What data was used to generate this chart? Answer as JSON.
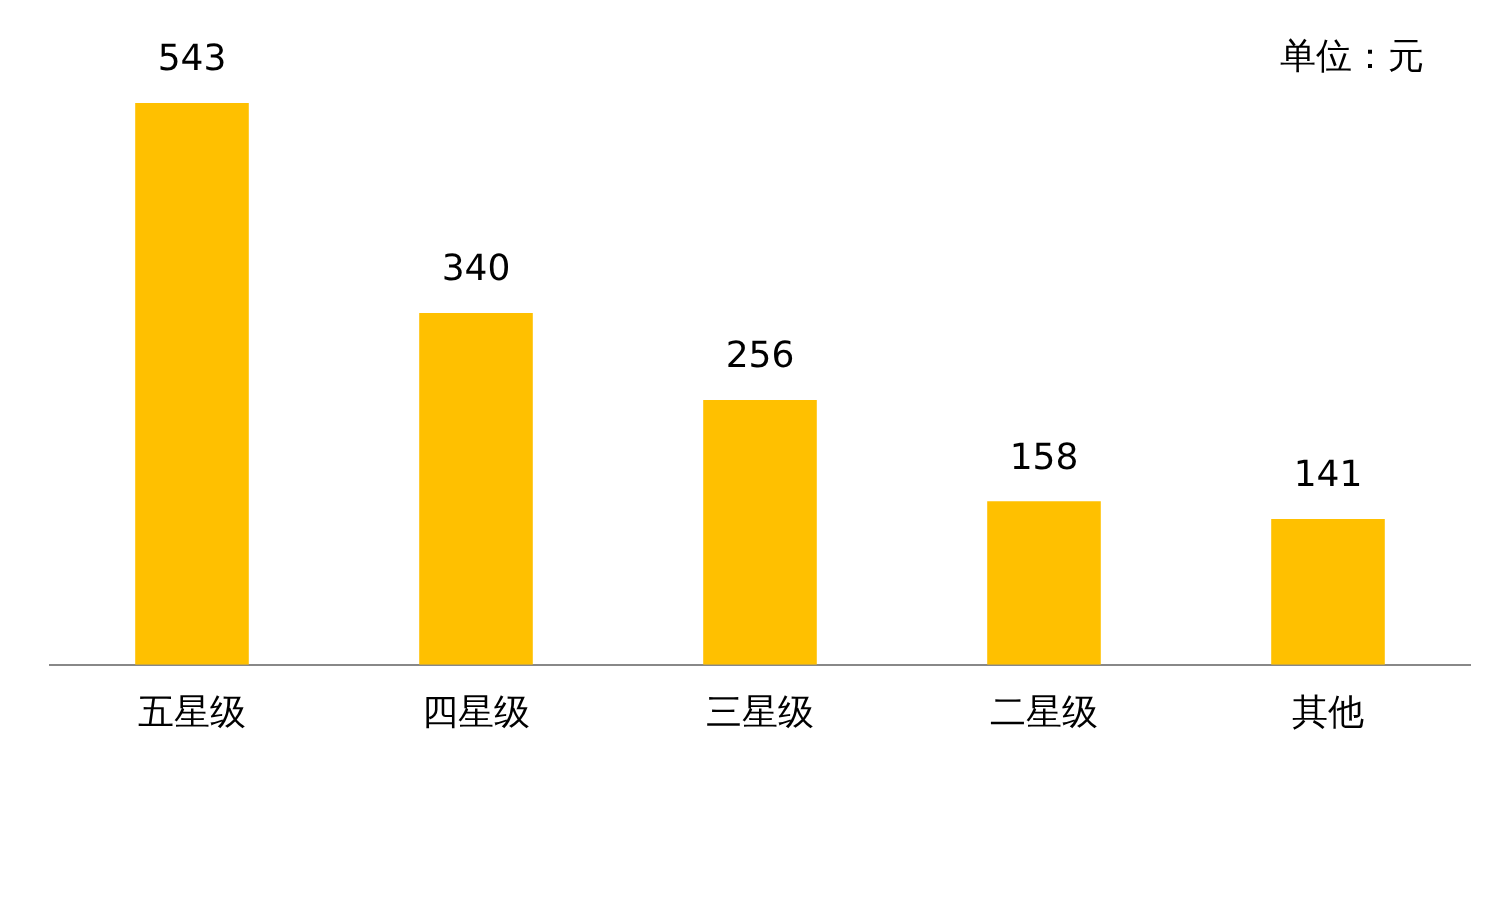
{
  "chart_data": {
    "type": "bar",
    "categories": [
      "五星级",
      "四星级",
      "三星级",
      "二星级",
      "其他"
    ],
    "values": [
      543,
      340,
      256,
      158,
      141
    ],
    "color": "#ffc000",
    "data_labels": true,
    "grid": false,
    "legend": false,
    "annotations": [
      "单位：元"
    ]
  }
}
